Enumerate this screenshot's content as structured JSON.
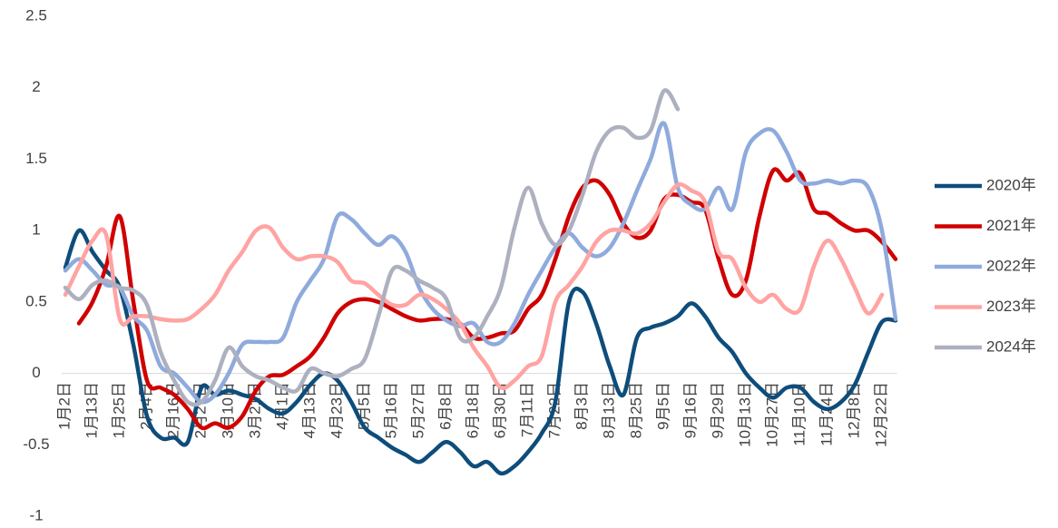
{
  "chart_data": {
    "type": "line",
    "categories": [
      "1月2日",
      null,
      "1月13日",
      null,
      "1月25日",
      null,
      "2月4日",
      null,
      "2月16日",
      null,
      "2月27日",
      null,
      "3月10日",
      null,
      "3月21日",
      null,
      "4月1日",
      null,
      "4月13日",
      null,
      "4月23日",
      null,
      "5月5日",
      null,
      "5月16日",
      null,
      "5月27日",
      null,
      "6月8日",
      null,
      "6月18日",
      null,
      "6月30日",
      null,
      "7月11日",
      null,
      "7月22日",
      null,
      "8月3日",
      null,
      "8月13日",
      null,
      "8月25日",
      null,
      "9月5日",
      null,
      "9月16日",
      null,
      "9月29日",
      null,
      "10月13日",
      null,
      "10月27日",
      null,
      "11月10日",
      null,
      "11月24日",
      null,
      "12月8日",
      null,
      "12月22日",
      null
    ],
    "ylim": [
      -1,
      2.5
    ],
    "yticks": [
      -1,
      -0.5,
      0,
      0.5,
      1,
      1.5,
      2,
      2.5
    ],
    "legend": "right",
    "series": [
      {
        "name": "2020年",
        "color": "#0e4d7b",
        "values": [
          0.74,
          1.0,
          0.85,
          0.72,
          0.6,
          0.2,
          -0.3,
          -0.45,
          -0.45,
          -0.48,
          -0.1,
          -0.15,
          -0.12,
          -0.15,
          -0.18,
          -0.25,
          -0.28,
          -0.2,
          -0.08,
          0,
          -0.05,
          -0.2,
          -0.38,
          -0.45,
          -0.52,
          -0.57,
          -0.62,
          -0.55,
          -0.48,
          -0.55,
          -0.65,
          -0.62,
          -0.7,
          -0.65,
          -0.55,
          -0.42,
          -0.2,
          0.5,
          0.57,
          0.35,
          0.05,
          -0.15,
          0.25,
          0.32,
          0.35,
          0.4,
          0.49,
          0.4,
          0.25,
          0.15,
          0,
          -0.1,
          -0.17,
          -0.1,
          -0.1,
          -0.2,
          -0.25,
          -0.2,
          -0.08,
          0.15,
          0.36,
          0.37
        ]
      },
      {
        "name": "2021年",
        "color": "#d00000",
        "values": [
          null,
          0.35,
          0.5,
          0.75,
          1.1,
          0.5,
          -0.05,
          -0.1,
          -0.15,
          -0.25,
          -0.38,
          -0.35,
          -0.38,
          -0.3,
          -0.12,
          -0.02,
          -0.01,
          0.05,
          0.12,
          0.25,
          0.42,
          0.5,
          0.52,
          0.5,
          0.45,
          0.4,
          0.37,
          0.38,
          0.38,
          0.35,
          0.25,
          0.25,
          0.28,
          0.3,
          0.45,
          0.55,
          0.8,
          1.1,
          1.3,
          1.35,
          1.25,
          1.05,
          0.95,
          1.0,
          1.22,
          1.25,
          1.2,
          1.15,
          0.8,
          0.55,
          0.65,
          1.1,
          1.42,
          1.35,
          1.4,
          1.15,
          1.12,
          1.05,
          1.0,
          1.0,
          0.92,
          0.8
        ]
      },
      {
        "name": "2022年",
        "color": "#8faadc",
        "values": [
          0.72,
          0.8,
          0.72,
          0.62,
          0.6,
          0.4,
          0.3,
          0.05,
          0,
          -0.1,
          -0.2,
          -0.15,
          0,
          0.2,
          0.22,
          0.22,
          0.25,
          0.5,
          0.65,
          0.8,
          1.1,
          1.08,
          0.98,
          0.9,
          0.96,
          0.85,
          0.6,
          0.45,
          0.37,
          0.33,
          0.35,
          0.22,
          0.22,
          0.35,
          0.55,
          0.72,
          0.88,
          0.98,
          0.88,
          0.82,
          0.88,
          1.05,
          1.28,
          1.5,
          1.75,
          1.3,
          1.18,
          1.15,
          1.3,
          1.15,
          1.55,
          1.68,
          1.7,
          1.55,
          1.35,
          1.33,
          1.35,
          1.33,
          1.35,
          1.3,
          1.0,
          0.38
        ]
      },
      {
        "name": "2023年",
        "color": "#ffa3a3",
        "values": [
          0.55,
          0.75,
          0.93,
          0.97,
          0.38,
          0.4,
          0.4,
          0.38,
          0.37,
          0.38,
          0.45,
          0.55,
          0.72,
          0.85,
          1.0,
          1.02,
          0.88,
          0.8,
          0.82,
          0.82,
          0.78,
          0.65,
          0.63,
          0.55,
          0.48,
          0.48,
          0.55,
          0.52,
          0.45,
          0.35,
          0.18,
          0.05,
          -0.1,
          -0.05,
          0.05,
          0.12,
          0.5,
          0.62,
          0.75,
          0.92,
          1.0,
          1.0,
          0.98,
          1.05,
          1.2,
          1.32,
          1.28,
          1.2,
          0.85,
          0.8,
          0.6,
          0.5,
          0.55,
          0.45,
          0.45,
          0.75,
          0.93,
          0.8,
          0.6,
          0.42,
          0.55,
          null
        ]
      },
      {
        "name": "2024年",
        "color": "#adb0bf",
        "values": [
          0.6,
          0.52,
          0.62,
          0.65,
          0.6,
          0.58,
          0.48,
          0.15,
          -0.05,
          -0.2,
          -0.2,
          -0.05,
          0.18,
          0.05,
          -0.02,
          -0.05,
          -0.1,
          -0.12,
          0.03,
          0,
          -0.02,
          0.03,
          0.1,
          0.4,
          0.72,
          0.72,
          0.65,
          0.6,
          0.52,
          0.25,
          0.25,
          0.4,
          0.6,
          1.02,
          1.3,
          1.05,
          0.9,
          1.0,
          1.25,
          1.55,
          1.7,
          1.72,
          1.65,
          1.7,
          1.98,
          1.85,
          null,
          null,
          null,
          null,
          null,
          null,
          null,
          null,
          null,
          null,
          null,
          null,
          null,
          null,
          null,
          null
        ]
      }
    ]
  }
}
